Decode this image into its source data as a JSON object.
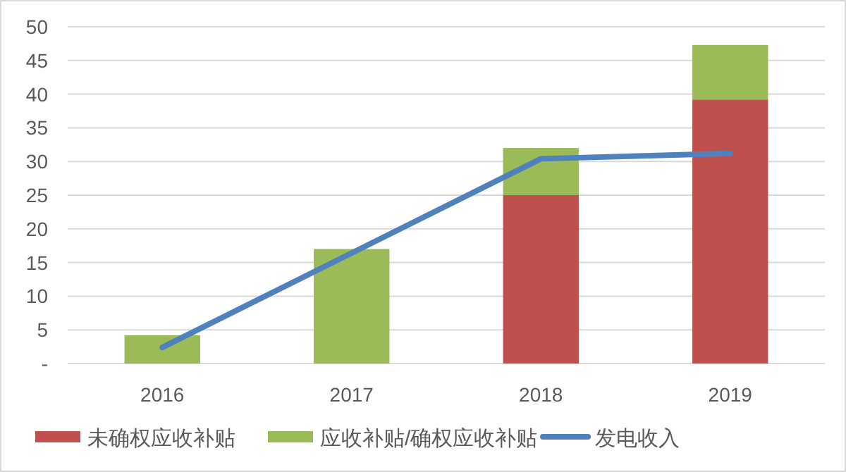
{
  "chart_data": {
    "type": "bar",
    "stacked": true,
    "categories": [
      "2016",
      "2017",
      "2018",
      "2019"
    ],
    "series": [
      {
        "name": "未确权应收补贴",
        "color": "#c0504d",
        "values": [
          0,
          0,
          25,
          39.2
        ]
      },
      {
        "name": "应收补贴/确权应收补贴",
        "color": "#9bbb59",
        "values": [
          4.2,
          17,
          7,
          8.1
        ]
      },
      {
        "name": "发电收入",
        "type": "line",
        "color": "#4f81bd",
        "values": [
          2.4,
          16.4,
          30.4,
          31.2
        ]
      }
    ],
    "ylim": [
      0,
      50
    ],
    "yticks": [
      {
        "value": 0,
        "label": "-"
      },
      5,
      10,
      15,
      20,
      25,
      30,
      35,
      40,
      45,
      50
    ],
    "grid": "y",
    "legend": "bottom",
    "marker": "none",
    "line_style": "solid"
  }
}
